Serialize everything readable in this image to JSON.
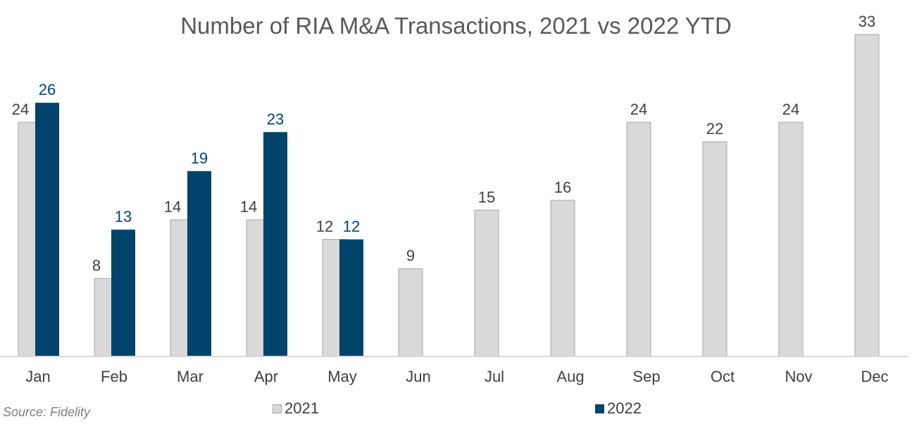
{
  "chart_data": {
    "type": "bar",
    "title": "Number of RIA M&A Transactions, 2021 vs 2022 YTD",
    "categories": [
      "Jan",
      "Feb",
      "Mar",
      "Apr",
      "May",
      "Jun",
      "Jul",
      "Aug",
      "Sep",
      "Oct",
      "Nov",
      "Dec"
    ],
    "series": [
      {
        "name": "2021",
        "color": "#d9d9d9",
        "label_color": "#404040",
        "values": [
          24,
          8,
          14,
          14,
          12,
          9,
          15,
          16,
          24,
          22,
          24,
          33
        ]
      },
      {
        "name": "2022",
        "color": "#00446b",
        "label_color": "#00446b",
        "values": [
          26,
          13,
          19,
          23,
          12,
          null,
          null,
          null,
          null,
          null,
          null,
          null
        ]
      }
    ],
    "ylim": [
      0,
      33
    ],
    "grid": false,
    "data_labels": true,
    "legend_position": "bottom",
    "source": "Source: Fidelity"
  }
}
